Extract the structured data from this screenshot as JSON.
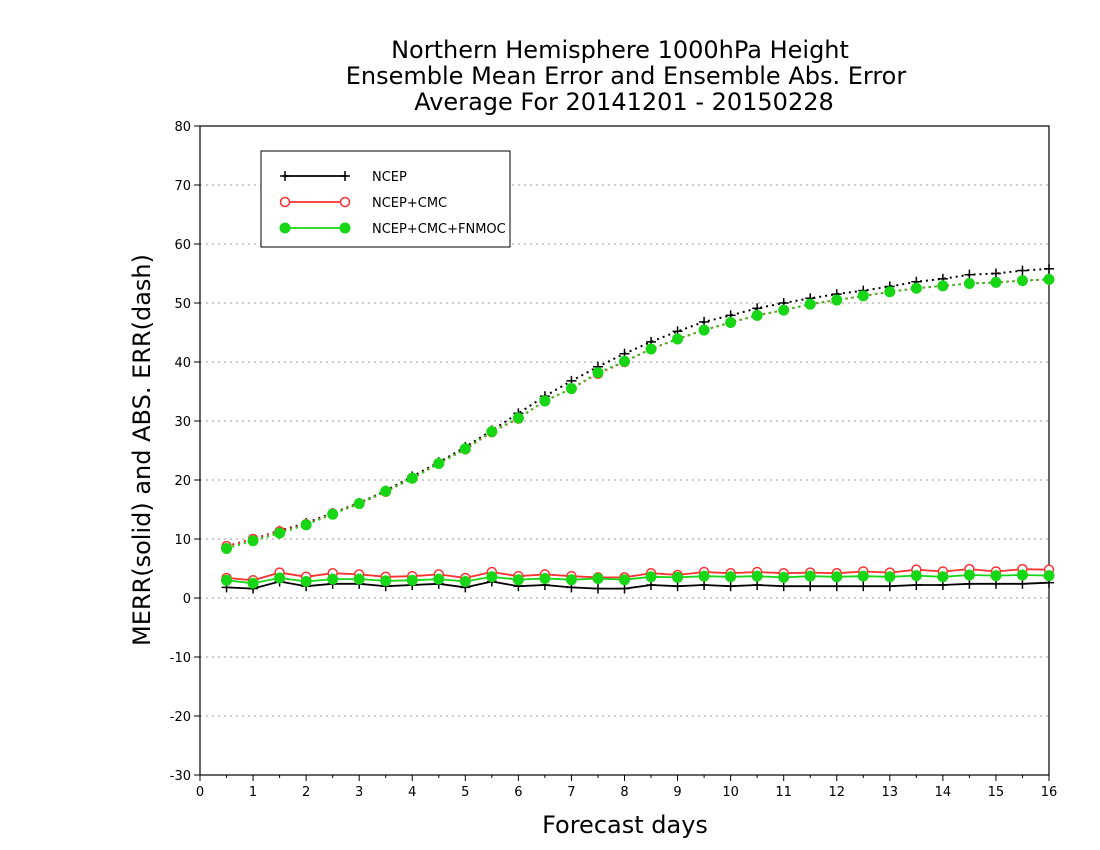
{
  "chart_data": {
    "type": "line",
    "title": [
      "Northern Hemisphere 1000hPa Height",
      "Ensemble Mean Error and Ensemble Abs. Error",
      "Average For 20141201 - 20150228"
    ],
    "xlabel": "Forecast days",
    "ylabel": "MERR(solid) and ABS. ERR(dash)",
    "xlim": [
      0,
      16
    ],
    "ylim": [
      -30,
      80
    ],
    "xticks": [
      "0",
      "1",
      "2",
      "3",
      "4",
      "5",
      "6",
      "7",
      "8",
      "9",
      "10",
      "11",
      "12",
      "13",
      "14",
      "15",
      "16"
    ],
    "yticks": [
      "-30",
      "-20",
      "-10",
      "0",
      "10",
      "20",
      "30",
      "40",
      "50",
      "60",
      "70",
      "80"
    ],
    "grid": "horizontal dotted",
    "legend_position": "top-left",
    "x": [
      0.5,
      1,
      1.5,
      2,
      2.5,
      3,
      3.5,
      4,
      4.5,
      5,
      5.5,
      6,
      6.5,
      7,
      7.5,
      8,
      8.5,
      9,
      9.5,
      10,
      10.5,
      11,
      11.5,
      12,
      12.5,
      13,
      13.5,
      14,
      14.5,
      15,
      15.5,
      16
    ],
    "series": [
      {
        "name": "NCEP",
        "color": "#000000",
        "marker": "plus",
        "merr": [
          1.8,
          1.6,
          2.8,
          2.0,
          2.4,
          2.4,
          2.0,
          2.2,
          2.4,
          1.8,
          2.8,
          2.0,
          2.2,
          1.8,
          1.6,
          1.6,
          2.2,
          2.0,
          2.2,
          2.0,
          2.2,
          2.0,
          2.0,
          2.0,
          2.0,
          2.0,
          2.2,
          2.2,
          2.4,
          2.4,
          2.4,
          2.6
        ],
        "abs_err": [
          8.8,
          10.0,
          11.4,
          12.7,
          14.4,
          16.1,
          18.2,
          20.6,
          23.0,
          25.6,
          28.4,
          31.3,
          34.2,
          36.8,
          39.2,
          41.4,
          43.4,
          45.2,
          46.8,
          47.9,
          49.1,
          50.0,
          50.8,
          51.5,
          52.1,
          52.8,
          53.6,
          54.1,
          54.8,
          55.0,
          55.5,
          55.8
        ]
      },
      {
        "name": "NCEP+CMC",
        "color": "#ff3030",
        "marker": "open-circle",
        "merr": [
          3.4,
          3.0,
          4.3,
          3.6,
          4.2,
          4.0,
          3.6,
          3.7,
          4.0,
          3.4,
          4.4,
          3.7,
          4.0,
          3.7,
          3.5,
          3.5,
          4.2,
          3.9,
          4.4,
          4.2,
          4.4,
          4.2,
          4.3,
          4.2,
          4.5,
          4.3,
          4.8,
          4.5,
          4.9,
          4.5,
          4.9,
          4.8
        ],
        "abs_err": [
          8.8,
          10.0,
          11.3,
          12.5,
          14.3,
          16.0,
          18.0,
          20.3,
          22.8,
          25.2,
          28.1,
          30.4,
          33.4,
          35.5,
          38.0,
          40.0,
          42.2,
          43.9,
          45.4,
          46.7,
          47.9,
          48.8,
          49.8,
          50.5,
          51.2,
          51.9,
          52.5,
          52.9,
          53.3,
          53.5,
          53.8,
          54.0
        ]
      },
      {
        "name": "NCEP+CMC+FNMOC",
        "color": "#16d616",
        "marker": "filled-circle",
        "merr": [
          3.0,
          2.5,
          3.4,
          2.8,
          3.2,
          3.2,
          2.9,
          3.0,
          3.2,
          2.8,
          3.6,
          3.1,
          3.3,
          3.1,
          3.3,
          3.1,
          3.6,
          3.5,
          3.7,
          3.6,
          3.7,
          3.5,
          3.7,
          3.6,
          3.7,
          3.6,
          3.8,
          3.6,
          3.9,
          3.8,
          3.9,
          3.8
        ],
        "abs_err": [
          8.4,
          9.7,
          11.0,
          12.4,
          14.2,
          16.0,
          18.1,
          20.3,
          22.8,
          25.3,
          28.2,
          30.5,
          33.4,
          35.5,
          38.2,
          40.1,
          42.2,
          43.9,
          45.4,
          46.7,
          47.9,
          48.8,
          49.8,
          50.5,
          51.2,
          51.9,
          52.5,
          52.9,
          53.3,
          53.5,
          53.8,
          54.0
        ]
      }
    ]
  }
}
